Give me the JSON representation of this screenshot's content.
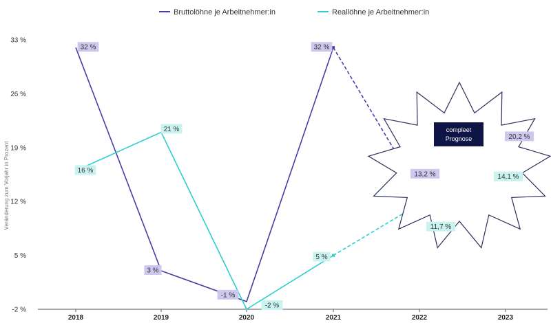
{
  "chart_data": {
    "type": "line",
    "categories": [
      "2018",
      "2019",
      "2020",
      "2021",
      "2022",
      "2023"
    ],
    "ylabel": "Veränderung zum Vorjahr in Prozent",
    "yticks": [
      "-2 %",
      "5 %",
      "12 %",
      "19 %",
      "26 %",
      "33 %"
    ],
    "ytick_values": [
      -2,
      5,
      12,
      19,
      26,
      33
    ],
    "ylim": [
      -2,
      33
    ],
    "grid": false,
    "legend_position": "top-center",
    "series": [
      {
        "name": "Bruttolöhne je Arbeitnehmer:in",
        "color": "#4b3ba8",
        "label_bg": "#cfc8ee",
        "values": [
          32,
          3,
          -1,
          32,
          13.2,
          20.2
        ],
        "labels": [
          "32 %",
          "3 %",
          "-1 %",
          "32 %",
          "13,2 %",
          "20,2 %"
        ],
        "forecast_from_index": 3
      },
      {
        "name": "Reallöhne je Arbeitnehmer:in",
        "color": "#2ccfcf",
        "label_bg": "#c9f3f0",
        "values": [
          16,
          21,
          -2,
          5,
          11.7,
          14.1
        ],
        "labels": [
          "16 %",
          "21 %",
          "-2 %",
          "5 %",
          "11,7 %",
          "14,1 %"
        ],
        "forecast_from_index": 3
      }
    ],
    "annotation": {
      "line1": "compleet",
      "line2": "Prognose",
      "bg_color": "#0f1446"
    }
  }
}
